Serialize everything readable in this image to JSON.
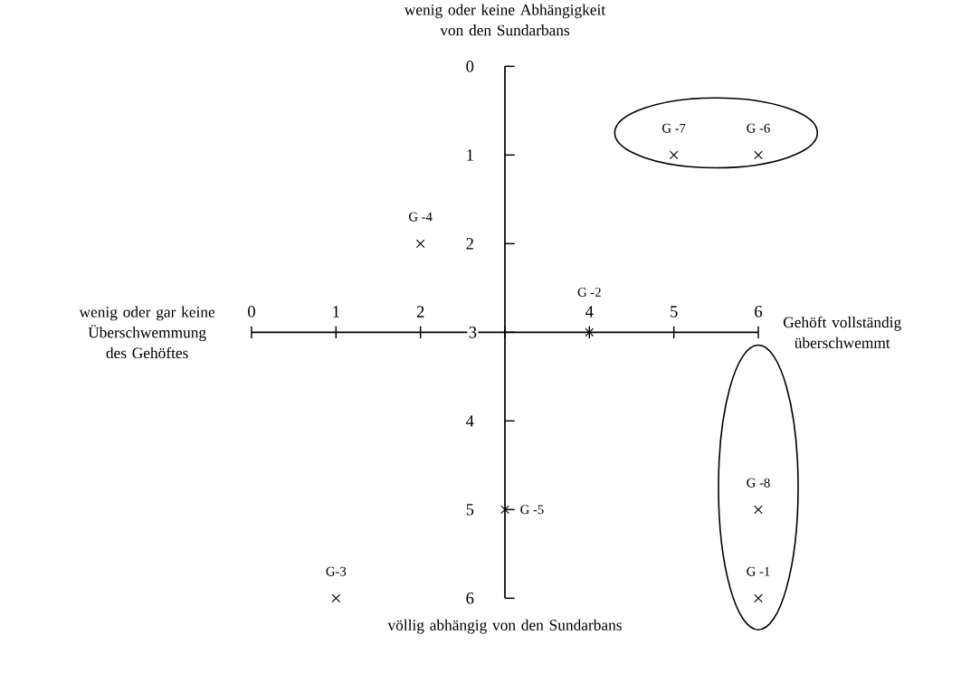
{
  "chart_data": {
    "type": "scatter",
    "marker": "cross",
    "xlim": [
      0,
      6
    ],
    "ylim": [
      6,
      0
    ],
    "xticks": [
      0,
      1,
      2,
      {
        "value": 3,
        "label": null
      },
      4,
      5,
      6
    ],
    "yticks": [
      0,
      1,
      2,
      3,
      4,
      5,
      6
    ],
    "series": [
      {
        "color": "#000000",
        "x": [
          5,
          6,
          2,
          4,
          3,
          1,
          6,
          6
        ],
        "values": [
          1,
          1,
          2,
          3,
          5,
          6,
          5,
          6
        ]
      }
    ],
    "annotations": [
      "wenig oder keine Abhängigkeit von den Sundarbans",
      "völlig abhängig von den Sundarbans",
      "wenig oder gar keine Überschwemmung des Gehöftes",
      "Gehöft vollständig überschwemmt",
      {
        "text": "G -7",
        "x": 5,
        "y": 1
      },
      {
        "text": "G -6",
        "x": 6,
        "y": 1
      },
      {
        "text": "G -4",
        "x": 2,
        "y": 2
      },
      {
        "text": "G -2",
        "x": 4,
        "y": 3
      },
      {
        "text": "G -5",
        "x": 3,
        "y": 5
      },
      {
        "text": "G-3",
        "x": 1,
        "y": 6
      },
      {
        "text": "G -8",
        "x": 6,
        "y": 5
      },
      {
        "text": "G -1",
        "x": 6,
        "y": 6
      }
    ]
  }
}
